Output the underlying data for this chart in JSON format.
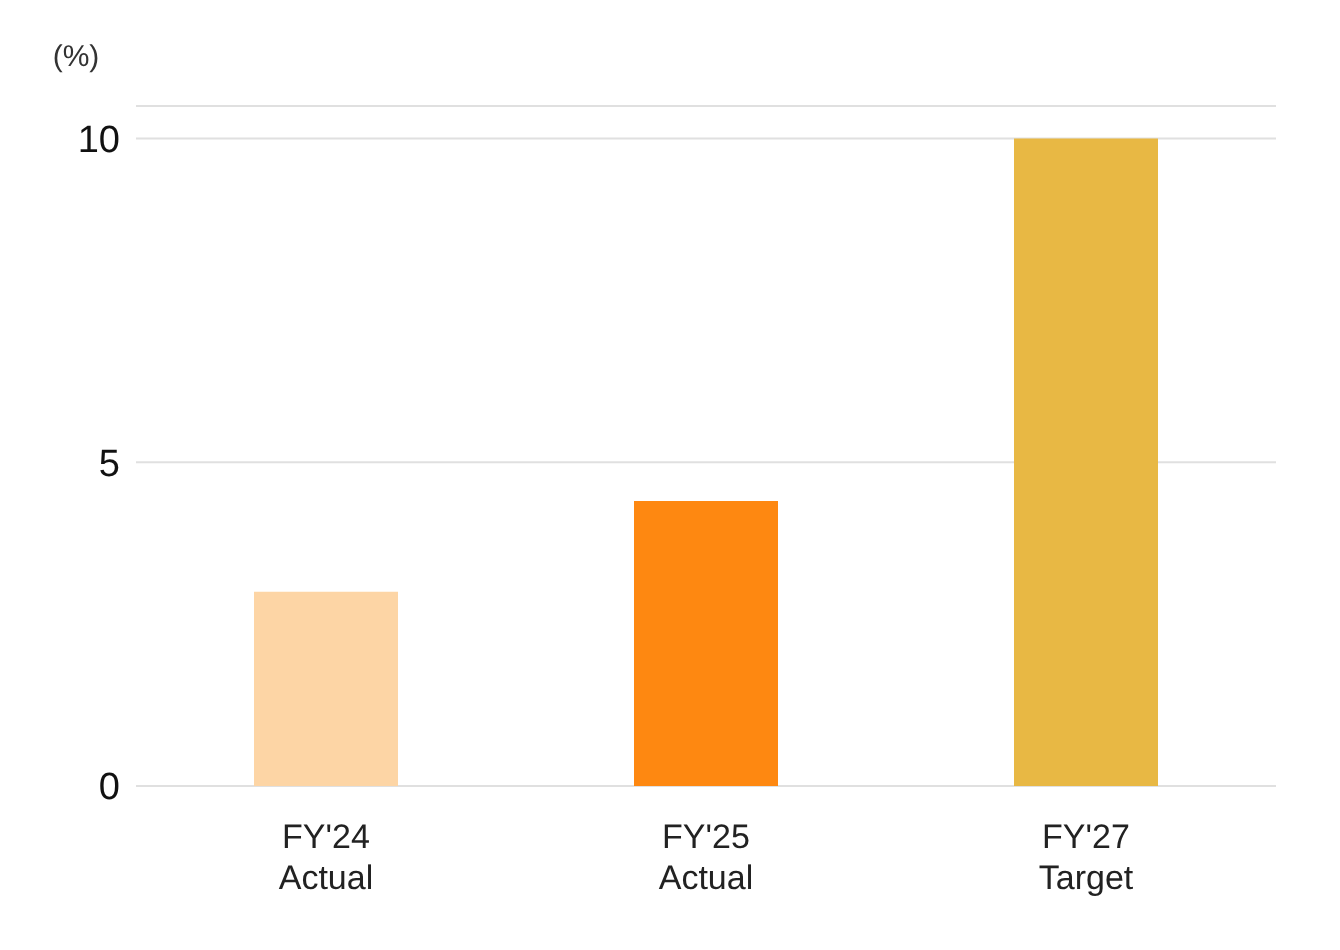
{
  "chart_data": {
    "type": "bar",
    "ylabel": "(%)",
    "categories": [
      "FY'24\nActual",
      "FY'25\nActual",
      "FY'27\nTarget"
    ],
    "values": [
      3.0,
      4.4,
      10
    ],
    "colors": [
      "#fdd5a5",
      "#fe8811",
      "#e8b844"
    ],
    "ylim": [
      0,
      10.5
    ],
    "yticks": [
      0,
      5,
      10
    ],
    "grid": "y"
  }
}
